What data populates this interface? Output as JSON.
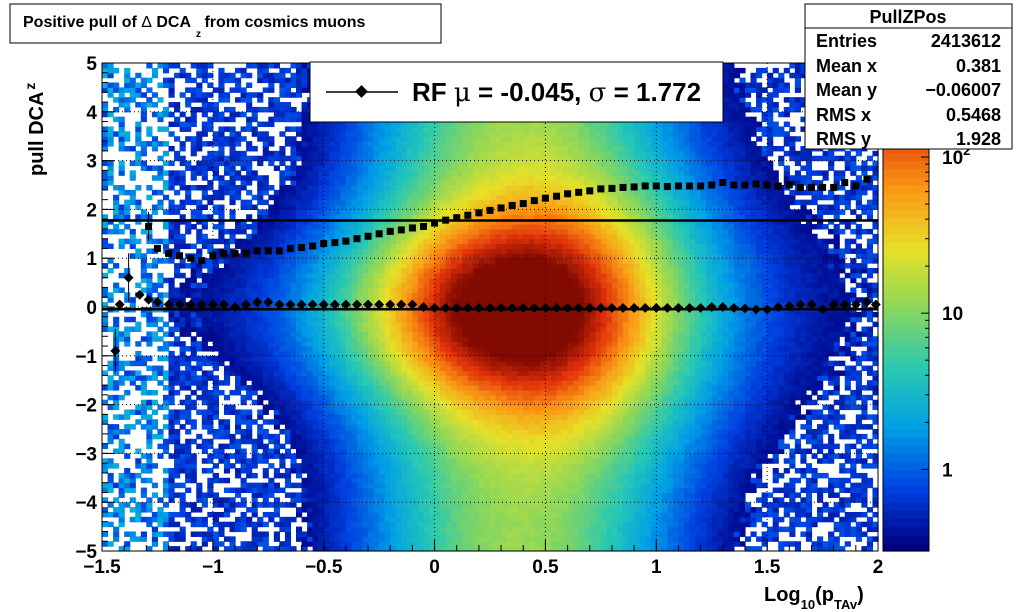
{
  "chart_data": {
    "type": "heatmap",
    "title": {
      "pre": "Positive pull of ",
      "symbol": "Δ",
      "main": " DCA",
      "sub": "z",
      "post": " from cosmics muons"
    },
    "xlabel": {
      "main": "Log",
      "sub1": "10",
      "mid": "(p",
      "sub2": "TAv",
      "post": ")"
    },
    "ylabel": {
      "main": "pull DCA",
      "sub": "z"
    },
    "xlim": [
      -1.5,
      2.0
    ],
    "ylim": [
      -5,
      5
    ],
    "x_ticks": [
      {
        "v": -1.5,
        "label": "−1.5"
      },
      {
        "v": -1.0,
        "label": "−1"
      },
      {
        "v": -0.5,
        "label": "−0.5"
      },
      {
        "v": 0.0,
        "label": "0"
      },
      {
        "v": 0.5,
        "label": "0.5"
      },
      {
        "v": 1.0,
        "label": "1"
      },
      {
        "v": 1.5,
        "label": "1.5"
      },
      {
        "v": 2.0,
        "label": "2"
      }
    ],
    "y_ticks": [
      {
        "v": 5,
        "label": "5"
      },
      {
        "v": 4,
        "label": "4"
      },
      {
        "v": 3,
        "label": "3"
      },
      {
        "v": 2,
        "label": "2"
      },
      {
        "v": 1,
        "label": "1"
      },
      {
        "v": 0,
        "label": "0"
      },
      {
        "v": -1,
        "label": "−1"
      },
      {
        "v": -2,
        "label": "−2"
      },
      {
        "v": -3,
        "label": "−3"
      },
      {
        "v": -4,
        "label": "−4"
      },
      {
        "v": -5,
        "label": "−5"
      }
    ],
    "grid": true,
    "z_scale": "log",
    "z_labels": [
      {
        "v": 1,
        "label": "1"
      },
      {
        "v": 10,
        "label": "10"
      },
      {
        "v": 100,
        "label": "10",
        "exp": "2"
      }
    ],
    "legend": {
      "position": "top-center",
      "entries": [
        {
          "pre": "RF ",
          "mu": "μ",
          "mid": " = -0.045, ",
          "sigma": "σ",
          "post": " =   1.772"
        }
      ]
    },
    "stats": {
      "name": "PullZPos",
      "rows": [
        {
          "label": "Entries",
          "value": "2413612"
        },
        {
          "label": "Mean x",
          "value": "0.381"
        },
        {
          "label": "Mean y",
          "value": "−0.06007"
        },
        {
          "label": "RMS x",
          "value": "0.5468"
        },
        {
          "label": "RMS y",
          "value": "1.928"
        }
      ]
    },
    "reference_lines": [
      {
        "y": 1.772,
        "x_range": [
          -1.5,
          2.0
        ]
      },
      {
        "y": -0.045,
        "x_range": [
          -1.5,
          2.0
        ]
      }
    ],
    "series": [
      {
        "marker": "diamond",
        "points": [
          [
            -1.44,
            -0.9
          ],
          [
            -1.42,
            0.05
          ],
          [
            -1.38,
            0.6
          ],
          [
            -1.33,
            0.25
          ],
          [
            -1.29,
            0.15
          ],
          [
            -1.25,
            0.1
          ],
          [
            -1.2,
            0.05
          ],
          [
            -1.15,
            0.05
          ],
          [
            -1.1,
            0.05
          ],
          [
            -1.05,
            0.05
          ],
          [
            -1.0,
            0.05
          ],
          [
            -0.95,
            0.05
          ],
          [
            -0.9,
            0.0
          ],
          [
            -0.85,
            0.05
          ],
          [
            -0.8,
            0.1
          ],
          [
            -0.75,
            0.1
          ],
          [
            -0.7,
            0.05
          ],
          [
            -0.65,
            0.05
          ],
          [
            -0.6,
            0.05
          ],
          [
            -0.55,
            0.05
          ],
          [
            -0.5,
            0.05
          ],
          [
            -0.45,
            0.05
          ],
          [
            -0.4,
            0.05
          ],
          [
            -0.35,
            0.05
          ],
          [
            -0.3,
            0.05
          ],
          [
            -0.25,
            0.05
          ],
          [
            -0.2,
            0.05
          ],
          [
            -0.15,
            0.05
          ],
          [
            -0.1,
            0.05
          ],
          [
            -0.05,
            0.0
          ],
          [
            0.0,
            -0.02
          ],
          [
            0.05,
            -0.02
          ],
          [
            0.1,
            -0.02
          ],
          [
            0.15,
            -0.02
          ],
          [
            0.2,
            -0.02
          ],
          [
            0.25,
            -0.02
          ],
          [
            0.3,
            -0.02
          ],
          [
            0.35,
            -0.02
          ],
          [
            0.4,
            -0.02
          ],
          [
            0.45,
            -0.02
          ],
          [
            0.5,
            -0.02
          ],
          [
            0.55,
            -0.02
          ],
          [
            0.6,
            -0.02
          ],
          [
            0.65,
            -0.02
          ],
          [
            0.7,
            -0.02
          ],
          [
            0.75,
            -0.02
          ],
          [
            0.8,
            -0.02
          ],
          [
            0.85,
            -0.02
          ],
          [
            0.9,
            -0.02
          ],
          [
            0.95,
            -0.02
          ],
          [
            1.0,
            -0.02
          ],
          [
            1.05,
            -0.02
          ],
          [
            1.1,
            -0.02
          ],
          [
            1.15,
            -0.02
          ],
          [
            1.2,
            -0.02
          ],
          [
            1.25,
            0.0
          ],
          [
            1.3,
            0.0
          ],
          [
            1.35,
            -0.02
          ],
          [
            1.4,
            -0.03
          ],
          [
            1.45,
            -0.05
          ],
          [
            1.5,
            -0.05
          ],
          [
            1.55,
            0.0
          ],
          [
            1.6,
            0.02
          ],
          [
            1.65,
            0.05
          ],
          [
            1.7,
            0.05
          ],
          [
            1.75,
            -0.05
          ],
          [
            1.8,
            0.05
          ],
          [
            1.85,
            0.05
          ],
          [
            1.9,
            0.05
          ],
          [
            1.95,
            0.1
          ],
          [
            1.99,
            0.05
          ]
        ]
      },
      {
        "marker": "square",
        "points": [
          [
            -1.29,
            1.65
          ],
          [
            -1.25,
            1.2
          ],
          [
            -1.2,
            1.1
          ],
          [
            -1.15,
            1.05
          ],
          [
            -1.1,
            1.0
          ],
          [
            -1.05,
            0.95
          ],
          [
            -1.0,
            1.05
          ],
          [
            -0.95,
            1.1
          ],
          [
            -0.9,
            1.1
          ],
          [
            -0.85,
            1.1
          ],
          [
            -0.8,
            1.15
          ],
          [
            -0.75,
            1.15
          ],
          [
            -0.7,
            1.15
          ],
          [
            -0.65,
            1.2
          ],
          [
            -0.6,
            1.22
          ],
          [
            -0.55,
            1.25
          ],
          [
            -0.5,
            1.3
          ],
          [
            -0.45,
            1.32
          ],
          [
            -0.4,
            1.35
          ],
          [
            -0.35,
            1.4
          ],
          [
            -0.3,
            1.45
          ],
          [
            -0.25,
            1.5
          ],
          [
            -0.2,
            1.55
          ],
          [
            -0.15,
            1.58
          ],
          [
            -0.1,
            1.62
          ],
          [
            -0.05,
            1.65
          ],
          [
            0.0,
            1.72
          ],
          [
            0.05,
            1.78
          ],
          [
            0.1,
            1.83
          ],
          [
            0.15,
            1.88
          ],
          [
            0.2,
            1.93
          ],
          [
            0.25,
            1.98
          ],
          [
            0.3,
            2.03
          ],
          [
            0.35,
            2.08
          ],
          [
            0.4,
            2.12
          ],
          [
            0.45,
            2.18
          ],
          [
            0.5,
            2.23
          ],
          [
            0.55,
            2.27
          ],
          [
            0.6,
            2.32
          ],
          [
            0.65,
            2.35
          ],
          [
            0.7,
            2.38
          ],
          [
            0.75,
            2.42
          ],
          [
            0.8,
            2.43
          ],
          [
            0.85,
            2.45
          ],
          [
            0.9,
            2.46
          ],
          [
            0.95,
            2.48
          ],
          [
            1.0,
            2.48
          ],
          [
            1.05,
            2.47
          ],
          [
            1.1,
            2.48
          ],
          [
            1.15,
            2.48
          ],
          [
            1.2,
            2.48
          ],
          [
            1.25,
            2.5
          ],
          [
            1.3,
            2.55
          ],
          [
            1.35,
            2.5
          ],
          [
            1.4,
            2.5
          ],
          [
            1.45,
            2.52
          ],
          [
            1.5,
            2.5
          ],
          [
            1.55,
            2.48
          ],
          [
            1.6,
            2.5
          ],
          [
            1.65,
            2.45
          ],
          [
            1.7,
            2.45
          ],
          [
            1.75,
            2.45
          ],
          [
            1.8,
            2.45
          ],
          [
            1.85,
            2.55
          ],
          [
            1.9,
            2.48
          ],
          [
            1.95,
            2.62
          ]
        ]
      }
    ]
  }
}
